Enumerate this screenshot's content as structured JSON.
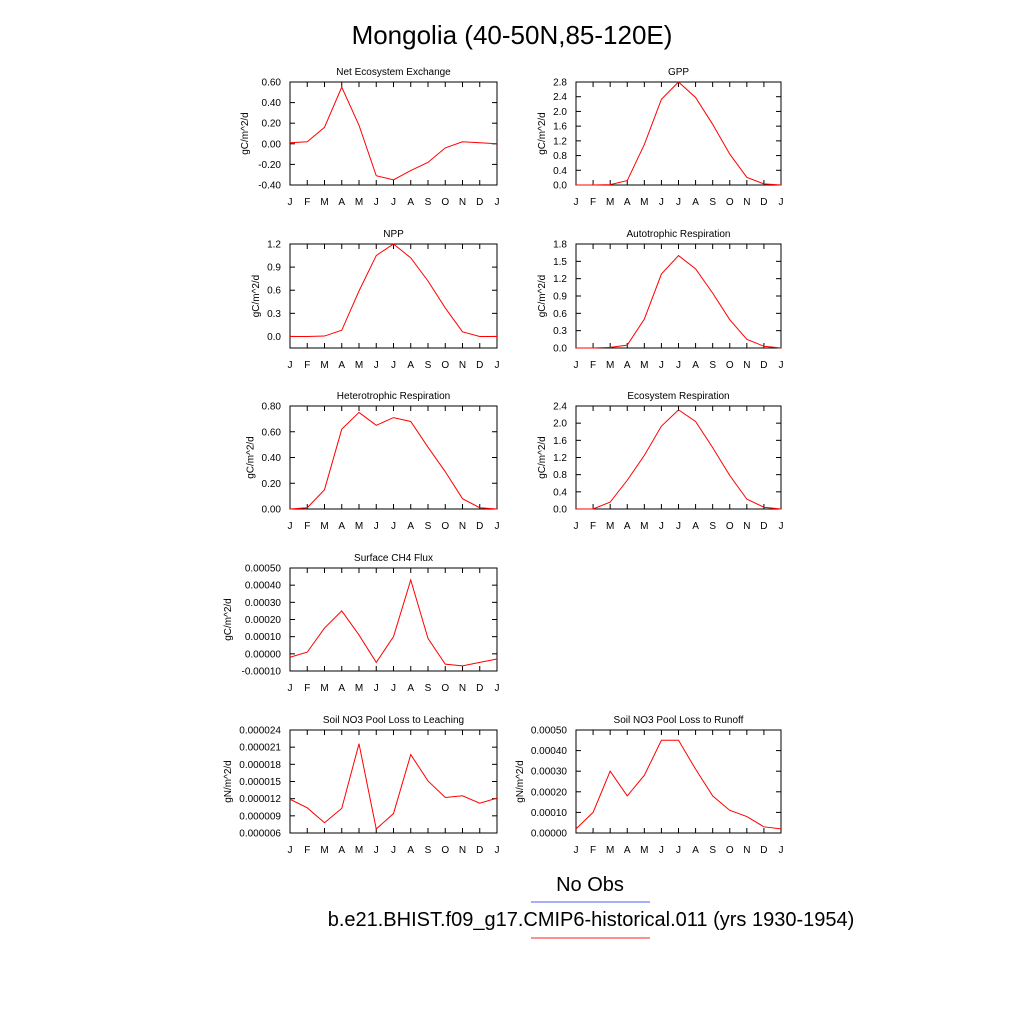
{
  "title": "Mongolia (40-50N,85-120E)",
  "months": [
    "J",
    "F",
    "M",
    "A",
    "M",
    "J",
    "J",
    "A",
    "S",
    "O",
    "N",
    "D",
    "J"
  ],
  "colors": {
    "series": "#ff0000",
    "obs_line": "#4a5cff",
    "model_line": "#ff2020"
  },
  "legend": {
    "obs_label": "No Obs",
    "model_label": "b.e21.BHIST.f09_g17.CMIP6-historical.011 (yrs 1930-1954)"
  },
  "chart_data": [
    {
      "type": "line",
      "title": "Net Ecosystem Exchange",
      "ylabel": "gC/m^2/d",
      "ylim": [
        -0.4,
        0.6
      ],
      "ytick_values": [
        -0.4,
        -0.2,
        0.0,
        0.2,
        0.4,
        0.6
      ],
      "ytick_labels": [
        "-0.40",
        "-0.20",
        "0.00",
        "0.20",
        "0.40",
        "0.60"
      ],
      "values": [
        0.01,
        0.02,
        0.16,
        0.55,
        0.18,
        -0.31,
        -0.35,
        -0.26,
        -0.18,
        -0.04,
        0.02,
        0.01,
        0.0
      ]
    },
    {
      "type": "line",
      "title": "GPP",
      "ylabel": "gC/m^2/d",
      "ylim": [
        0,
        2.8
      ],
      "ytick_values": [
        0.0,
        0.4,
        0.8,
        1.2,
        1.6,
        2.0,
        2.4,
        2.8
      ],
      "ytick_labels": [
        "0.0",
        "0.4",
        "0.8",
        "1.2",
        "1.6",
        "2.0",
        "2.4",
        "2.8"
      ],
      "values": [
        0.0,
        0.0,
        0.01,
        0.12,
        1.1,
        2.33,
        2.8,
        2.38,
        1.65,
        0.84,
        0.21,
        0.03,
        0.0
      ]
    },
    {
      "type": "line",
      "title": "NPP",
      "ylabel": "gC/m^2/d",
      "ylim": [
        -0.15,
        1.2
      ],
      "ytick_values": [
        0.0,
        0.3,
        0.6,
        0.9,
        1.2
      ],
      "ytick_labels": [
        "0.0",
        "0.3",
        "0.6",
        "0.9",
        "1.2"
      ],
      "values": [
        0.0,
        0.0,
        0.005,
        0.08,
        0.59,
        1.05,
        1.2,
        1.02,
        0.72,
        0.37,
        0.06,
        0.0,
        0.0
      ]
    },
    {
      "type": "line",
      "title": "Autotrophic Respiration",
      "ylabel": "gC/m^2/d",
      "ylim": [
        0,
        1.8
      ],
      "ytick_values": [
        0.0,
        0.3,
        0.6,
        0.9,
        1.2,
        1.5,
        1.8
      ],
      "ytick_labels": [
        "0.0",
        "0.3",
        "0.6",
        "0.9",
        "1.2",
        "1.5",
        "1.8"
      ],
      "values": [
        0.0,
        0.0,
        0.01,
        0.05,
        0.5,
        1.28,
        1.6,
        1.37,
        0.95,
        0.49,
        0.15,
        0.03,
        0.0
      ]
    },
    {
      "type": "line",
      "title": "Heterotrophic Respiration",
      "ylabel": "gC/m^2/d",
      "ylim": [
        0,
        0.8
      ],
      "ytick_values": [
        0.0,
        0.2,
        0.4,
        0.6,
        0.8
      ],
      "ytick_labels": [
        "0.00",
        "0.20",
        "0.40",
        "0.60",
        "0.80"
      ],
      "values": [
        0.0,
        0.01,
        0.15,
        0.62,
        0.75,
        0.65,
        0.71,
        0.68,
        0.48,
        0.29,
        0.08,
        0.01,
        0.0
      ]
    },
    {
      "type": "line",
      "title": "Ecosystem Respiration",
      "ylabel": "gC/m^2/d",
      "ylim": [
        0,
        2.4
      ],
      "ytick_values": [
        0.0,
        0.4,
        0.8,
        1.2,
        1.6,
        2.0,
        2.4
      ],
      "ytick_labels": [
        "0.0",
        "0.4",
        "0.8",
        "1.2",
        "1.6",
        "2.0",
        "2.4"
      ],
      "values": [
        0.0,
        0.0,
        0.16,
        0.67,
        1.25,
        1.93,
        2.31,
        2.04,
        1.43,
        0.78,
        0.23,
        0.04,
        0.0
      ]
    },
    {
      "type": "line",
      "title": "Surface CH4 Flux",
      "ylabel": "gC/m^2/d",
      "ylim": [
        -0.0001,
        0.0005
      ],
      "ytick_values": [
        -0.0001,
        0.0,
        0.0001,
        0.0002,
        0.0003,
        0.0004,
        0.0005
      ],
      "ytick_labels": [
        "-0.00010",
        "0.00000",
        "0.00010",
        "0.00020",
        "0.00030",
        "0.00040",
        "0.00050"
      ],
      "values": [
        -2e-05,
        1e-05,
        0.00015,
        0.00025,
        0.00011,
        -5e-05,
        0.0001,
        0.00043,
        9e-05,
        -6e-05,
        -7e-05,
        -5e-05,
        -3e-05
      ]
    },
    {
      "type": "line",
      "title": "Soil NO3 Pool Loss to Leaching",
      "ylabel": "gN/m^2/d",
      "ylim": [
        6e-06,
        2.4e-05
      ],
      "ytick_values": [
        6e-06,
        9e-06,
        1.2e-05,
        1.5e-05,
        1.8e-05,
        2.1e-05,
        2.4e-05
      ],
      "ytick_labels": [
        "0.000006",
        "0.000009",
        "0.000012",
        "0.000015",
        "0.000018",
        "0.000021",
        "0.000024"
      ],
      "values": [
        1.19e-05,
        1.04e-05,
        7.8e-06,
        1.03e-05,
        2.16e-05,
        6.7e-06,
        9.4e-06,
        1.97e-05,
        1.51e-05,
        1.22e-05,
        1.25e-05,
        1.12e-05,
        1.21e-05
      ]
    },
    {
      "type": "line",
      "title": "Soil NO3 Pool Loss to Runoff",
      "ylabel": "gN/m^2/d",
      "ylim": [
        0,
        0.0005
      ],
      "ytick_values": [
        0.0,
        0.0001,
        0.0002,
        0.0003,
        0.0004,
        0.0005
      ],
      "ytick_labels": [
        "0.00000",
        "0.00010",
        "0.00020",
        "0.00030",
        "0.00040",
        "0.00050"
      ],
      "values": [
        2e-05,
        0.0001,
        0.0003,
        0.00018,
        0.00028,
        0.00045,
        0.00045,
        0.00031,
        0.00018,
        0.00011,
        8e-05,
        3e-05,
        2e-05
      ]
    }
  ]
}
